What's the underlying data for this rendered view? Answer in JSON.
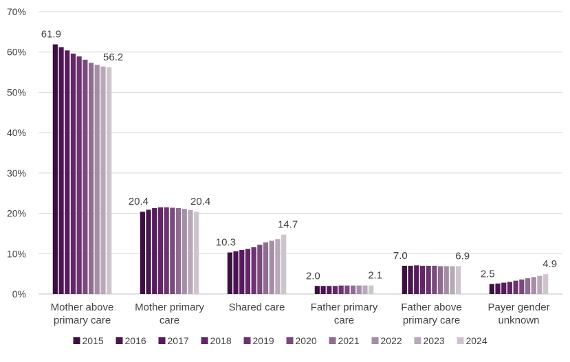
{
  "chart_data": {
    "type": "bar",
    "categories": [
      [
        "Mother above",
        "primary care"
      ],
      [
        "Mother primary",
        "care"
      ],
      [
        "Shared care"
      ],
      [
        "Father primary",
        "care"
      ],
      [
        "Father above",
        "primary  care"
      ],
      [
        "Payer gender",
        "unknown"
      ]
    ],
    "ylim": [
      0,
      70
    ],
    "yticks": [
      "0%",
      "10%",
      "20%",
      "30%",
      "40%",
      "50%",
      "60%",
      "70%"
    ],
    "ytick_values": [
      0,
      10,
      20,
      30,
      40,
      50,
      60,
      70
    ],
    "grid": true,
    "legend_position": "bottom",
    "series": [
      {
        "name": "2015",
        "color": "#3d0f40",
        "values": [
          61.9,
          20.4,
          10.3,
          2.0,
          7.0,
          2.5
        ]
      },
      {
        "name": "2016",
        "color": "#4a1450",
        "values": [
          61.2,
          20.9,
          10.6,
          2.0,
          7.0,
          2.6
        ]
      },
      {
        "name": "2017",
        "color": "#561b5c",
        "values": [
          60.4,
          21.3,
          10.9,
          2.0,
          7.1,
          2.8
        ]
      },
      {
        "name": "2018",
        "color": "#632766",
        "values": [
          59.6,
          21.5,
          11.2,
          2.0,
          7.0,
          3.0
        ]
      },
      {
        "name": "2019",
        "color": "#6d3370",
        "values": [
          58.9,
          21.5,
          11.6,
          2.1,
          7.0,
          3.3
        ]
      },
      {
        "name": "2020",
        "color": "#7a4a7c",
        "values": [
          58.1,
          21.4,
          12.2,
          2.1,
          7.0,
          3.6
        ]
      },
      {
        "name": "2021",
        "color": "#8f6d90",
        "values": [
          57.3,
          21.3,
          12.8,
          2.1,
          6.9,
          3.9
        ]
      },
      {
        "name": "2022",
        "color": "#a48ea5",
        "values": [
          56.8,
          21.1,
          13.2,
          2.1,
          6.9,
          4.2
        ]
      },
      {
        "name": "2023",
        "color": "#b8a9b9",
        "values": [
          56.4,
          20.8,
          13.6,
          2.1,
          6.9,
          4.5
        ]
      },
      {
        "name": "2024",
        "color": "#cec4ce",
        "values": [
          56.2,
          20.4,
          14.7,
          2.1,
          6.9,
          4.9
        ]
      }
    ],
    "data_labels": [
      {
        "category": 0,
        "series": 0,
        "text": "61.9"
      },
      {
        "category": 0,
        "series": 9,
        "text": "56.2"
      },
      {
        "category": 1,
        "series": 0,
        "text": "20.4"
      },
      {
        "category": 1,
        "series": 9,
        "text": "20.4"
      },
      {
        "category": 2,
        "series": 0,
        "text": "10.3"
      },
      {
        "category": 2,
        "series": 9,
        "text": "14.7"
      },
      {
        "category": 3,
        "series": 0,
        "text": "2.0"
      },
      {
        "category": 3,
        "series": 9,
        "text": "2.1"
      },
      {
        "category": 4,
        "series": 0,
        "text": "7.0"
      },
      {
        "category": 4,
        "series": 9,
        "text": "6.9"
      },
      {
        "category": 5,
        "series": 0,
        "text": "2.5"
      },
      {
        "category": 5,
        "series": 9,
        "text": "4.9"
      }
    ],
    "colors": {
      "grid": "#d9d9d9",
      "axis": "#bfbfbf",
      "text": "#404040"
    }
  }
}
